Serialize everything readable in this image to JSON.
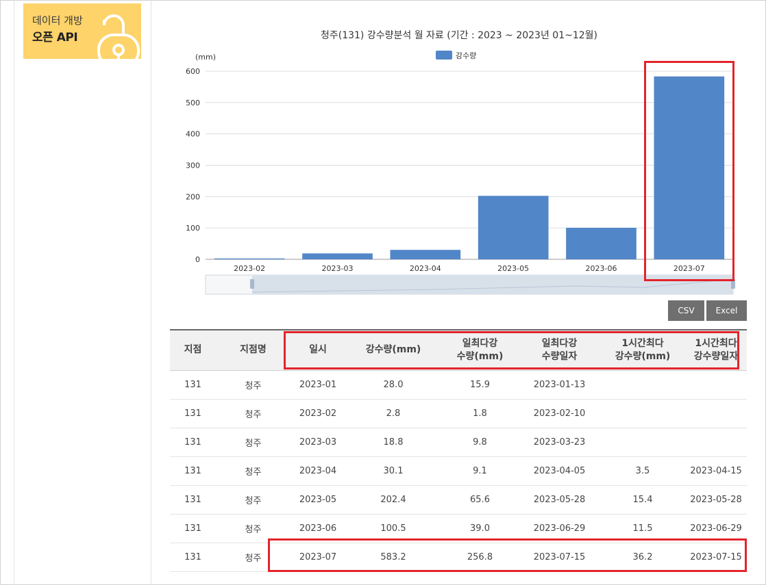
{
  "banner": {
    "line1": "데이터 개방",
    "line2": "오픈 API",
    "icon": "lock-icon"
  },
  "chart_data": {
    "type": "bar",
    "title": "청주(131) 강수량분석 월 자료 (기간 : 2023 ~ 2023년  01~12월)",
    "ylabel": "(mm)",
    "legend": "강수량",
    "color": "#5186c8",
    "categories": [
      "2023-02",
      "2023-03",
      "2023-04",
      "2023-05",
      "2023-06",
      "2023-07"
    ],
    "values": [
      2.8,
      18.8,
      30.1,
      202.4,
      100.5,
      583.2
    ],
    "ylim": [
      0,
      600
    ],
    "yticks": [
      0,
      100,
      200,
      300,
      400,
      500,
      600
    ],
    "grid": true,
    "legend_position": "top-center"
  },
  "buttons": {
    "csv": "CSV",
    "excel": "Excel"
  },
  "table": {
    "headers": [
      "지점",
      "지점명",
      "일시",
      "강수량(mm)",
      "일최다강\n수량(mm)",
      "일최다강\n수량일자",
      "1시간최다\n강수량(mm)",
      "1시간최다\n강수량일자"
    ],
    "rows": [
      [
        "131",
        "청주",
        "2023-01",
        "28.0",
        "15.9",
        "2023-01-13",
        "",
        ""
      ],
      [
        "131",
        "청주",
        "2023-02",
        "2.8",
        "1.8",
        "2023-02-10",
        "",
        ""
      ],
      [
        "131",
        "청주",
        "2023-03",
        "18.8",
        "9.8",
        "2023-03-23",
        "",
        ""
      ],
      [
        "131",
        "청주",
        "2023-04",
        "30.1",
        "9.1",
        "2023-04-05",
        "3.5",
        "2023-04-15"
      ],
      [
        "131",
        "청주",
        "2023-05",
        "202.4",
        "65.6",
        "2023-05-28",
        "15.4",
        "2023-05-28"
      ],
      [
        "131",
        "청주",
        "2023-06",
        "100.5",
        "39.0",
        "2023-06-29",
        "11.5",
        "2023-06-29"
      ],
      [
        "131",
        "청주",
        "2023-07",
        "583.2",
        "256.8",
        "2023-07-15",
        "36.2",
        "2023-07-15"
      ]
    ]
  },
  "colors": {
    "highlight": "#e3242b",
    "bar": "#5186c8",
    "button": "#6f6f6f",
    "banner": "#fdd36a"
  }
}
